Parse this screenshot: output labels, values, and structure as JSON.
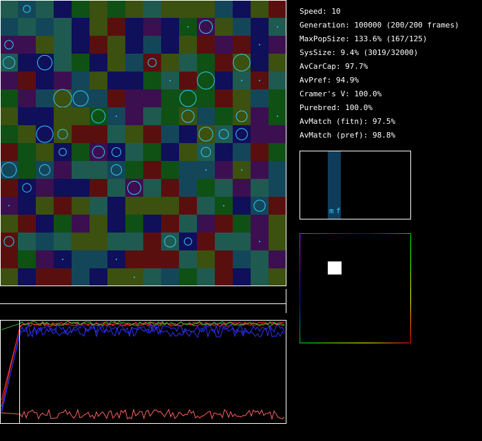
{
  "stats": [
    "Speed: 10",
    "Generation: 100000 (200/200 frames)",
    "MaxPopSize: 133.6% (167/125)",
    "SysSize: 9.4% (3019/32000)",
    "AvCarCap: 97.7%",
    "AvPref: 94.9%",
    "Cramer's V: 100.0%",
    "Purebred: 100.0%",
    "AvMatch (fitn): 97.5%",
    "AvMatch (pref): 98.8%"
  ],
  "histogram_labels": [
    "m",
    "f"
  ]
}
